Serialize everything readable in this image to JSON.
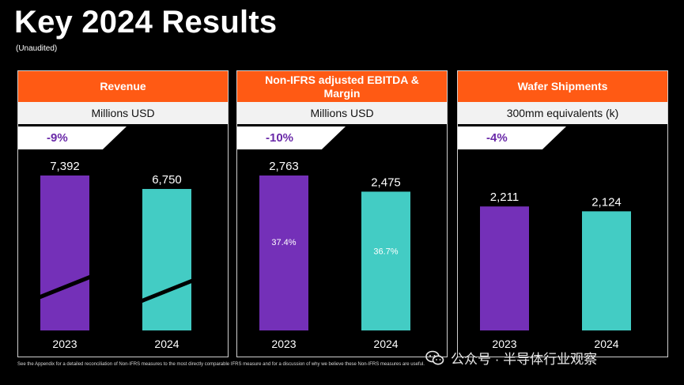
{
  "title": "Key 2024 Results",
  "subtitle": "(Unaudited)",
  "colors": {
    "accent": "#ff5a14",
    "bar_2023": "#7430b8",
    "bar_2024": "#43ccc4"
  },
  "panels": [
    {
      "header": "Revenue",
      "unit": "Millions USD",
      "change": "-9%"
    },
    {
      "header": "Non-IFRS adjusted EBITDA & Margin",
      "unit": "Millions USD",
      "change": "-10%"
    },
    {
      "header": "Wafer Shipments",
      "unit": "300mm equivalents (k)",
      "change": "-4%"
    }
  ],
  "chart_data": [
    {
      "type": "bar",
      "title": "Revenue",
      "ylabel": "Millions USD",
      "categories": [
        "2023",
        "2024"
      ],
      "values": [
        7392,
        6750
      ],
      "value_labels": [
        "7,392",
        "6,750"
      ],
      "axis_break": true,
      "ylim": [
        0,
        7392
      ]
    },
    {
      "type": "bar",
      "title": "Non-IFRS adjusted EBITDA & Margin",
      "ylabel": "Millions USD",
      "categories": [
        "2023",
        "2024"
      ],
      "values": [
        2763,
        2475
      ],
      "value_labels": [
        "2,763",
        "2,475"
      ],
      "inner_labels": [
        "37.4%",
        "36.7%"
      ],
      "ylim": [
        0,
        2763
      ]
    },
    {
      "type": "bar",
      "title": "Wafer Shipments",
      "ylabel": "300mm equivalents (k)",
      "categories": [
        "2023",
        "2024"
      ],
      "values": [
        2211,
        2124
      ],
      "value_labels": [
        "2,211",
        "2,124"
      ],
      "ylim": [
        0,
        2763
      ]
    }
  ],
  "footnote": "See the Appendix for a detailed reconciliation of Non-IFRS measures to the most directly comparable IFRS measure and for a discussion of why we believe these Non-IFRS measures are useful.",
  "watermark": "公众号 · 半导体行业观察"
}
